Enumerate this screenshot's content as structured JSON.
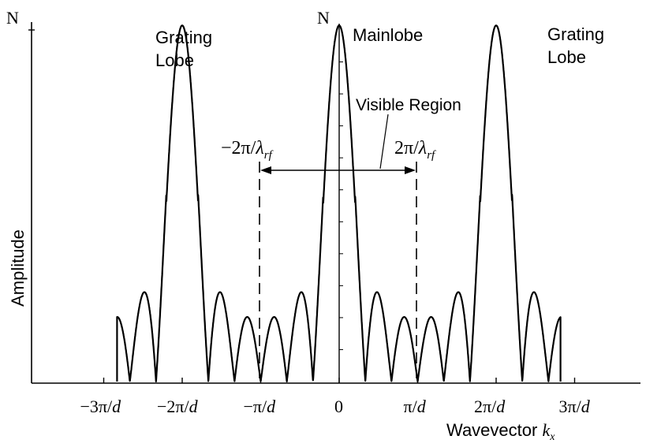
{
  "figure": {
    "ylabel": "Amplitude",
    "xlabel_prefix": "Wavevector ",
    "xlabel_var": "k",
    "xlabel_sub": "x",
    "peak_label_left": "N",
    "peak_label_center": "N",
    "annotations": {
      "grating_left_line1": "Grating",
      "grating_left_line2": "Lobe",
      "mainlobe": "Mainlobe",
      "grating_right_line1": "Grating",
      "grating_right_line2": "Lobe",
      "visible_region": "Visible Region",
      "left_bound_num": "−2π/",
      "left_bound_lambda": "λ",
      "left_bound_sub": "rf",
      "right_bound_num": "2π/",
      "right_bound_lambda": "λ",
      "right_bound_sub": "rf"
    }
  },
  "chart_data": {
    "type": "line",
    "xlabel": "Wavevector k_x",
    "ylabel": "Amplitude",
    "x_ticks": [
      "−3π/d",
      "−2π/d",
      "−π/d",
      "0",
      "π/d",
      "2π/d",
      "3π/d"
    ],
    "x_tick_values": [
      -3,
      -2,
      -1,
      0,
      1,
      2,
      3
    ],
    "x_units": "π/d",
    "xlim": [
      -3,
      3
    ],
    "ylim": [
      0,
      1
    ],
    "peak_value_label": "N",
    "mainlobe_center": 0,
    "grating_lobe_centers": [
      -2,
      2
    ],
    "visible_region": [
      -0.72,
      0.72
    ],
    "elements_per_period": 6
  }
}
